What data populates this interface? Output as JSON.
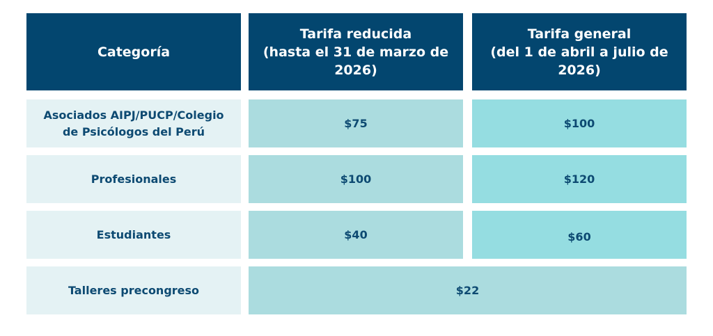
{
  "header": {
    "category": "Categoría",
    "reduced": "Tarifa reducida\n(hasta el 31 de marzo de\n2026)",
    "general": "Tarifa general\n(del 1 de abril a julio de\n2026)"
  },
  "rows": [
    {
      "category": "Asociados AIPJ/PUCP/Colegio\nde Psicólogos del Perú",
      "reduced": "$75",
      "general": "$100"
    },
    {
      "category": "Profesionales",
      "reduced": "$100",
      "general": "$120"
    },
    {
      "category": "Estudiantes",
      "reduced": "$40",
      "general": "$60"
    },
    {
      "category": "Talleres precongreso",
      "price": "$22"
    }
  ],
  "colors": {
    "header_bg": "#03466f",
    "category_bg": "#e4f2f4",
    "reduced_bg": "#abdcdf",
    "general_bg": "#95dde1",
    "text": "#0d4a72"
  }
}
